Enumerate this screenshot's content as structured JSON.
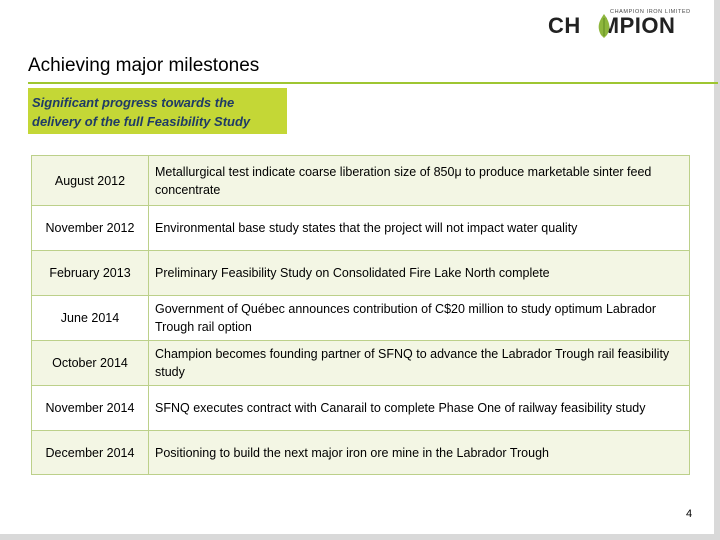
{
  "logo": {
    "tagline": "CHAMPION IRON LIMITED",
    "word_left": "CH",
    "word_right": "MPION",
    "leaf_color": "#8db63c"
  },
  "slide": {
    "title": "Achieving major milestones",
    "callout": "Significant progress towards the delivery of the full Feasibility Study",
    "page_number": "4",
    "accent_color": "#9ec631",
    "callout_color": "#c4d736"
  },
  "milestones": [
    {
      "date": "August 2012",
      "text": "Metallurgical test indicate coarse liberation size of 850μ to produce marketable sinter feed concentrate"
    },
    {
      "date": "November 2012",
      "text": "Environmental base study states that the project will not impact water quality"
    },
    {
      "date": "February 2013",
      "text": "Preliminary Feasibility Study on Consolidated Fire Lake North complete"
    },
    {
      "date": "June 2014",
      "text": "Government of Québec announces contribution of C$20 million to study optimum Labrador Trough rail option"
    },
    {
      "date": "October 2014",
      "text": "Champion becomes founding partner of SFNQ to advance the Labrador Trough rail feasibility study"
    },
    {
      "date": "November 2014",
      "text": "SFNQ executes contract with Canarail to complete Phase One of railway feasibility study"
    },
    {
      "date": "December 2014",
      "text": "Positioning to build the next major iron ore mine in the Labrador Trough"
    }
  ]
}
